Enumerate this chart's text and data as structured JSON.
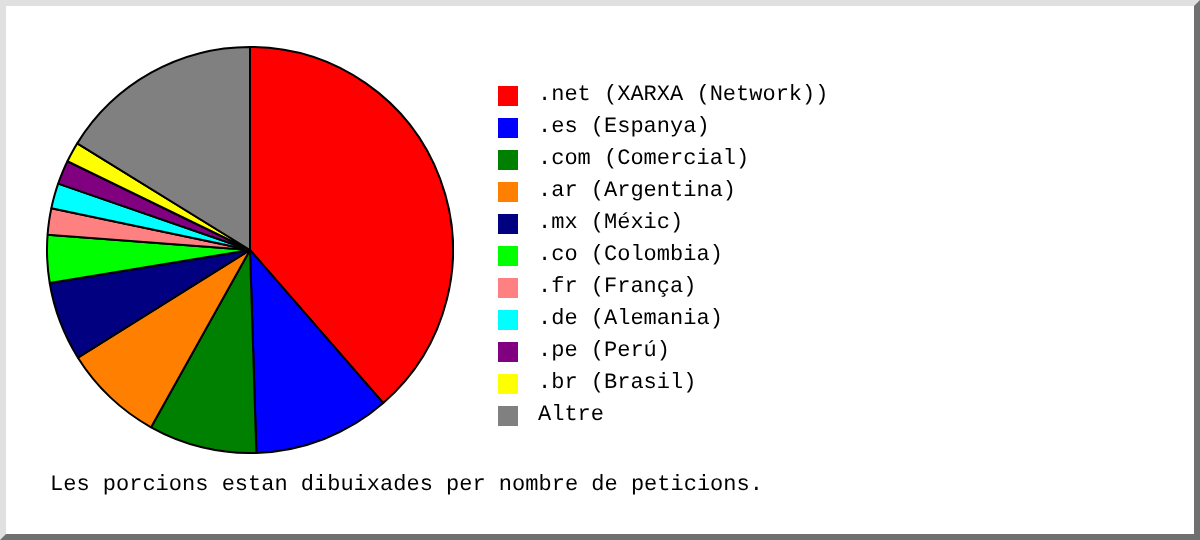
{
  "chart_data": {
    "type": "pie",
    "categories": [
      ".net (XARXA (Network))",
      ".es (Espanya)",
      ".com (Comercial)",
      ".ar (Argentina)",
      ".mx (Méxic)",
      ".co (Colombia)",
      ".fr (França)",
      ".de (Alemania)",
      ".pe (Perú)",
      ".br (Brasil)",
      "Altre"
    ],
    "values": [
      38.6,
      10.9,
      8.6,
      8.0,
      6.3,
      3.8,
      2.1,
      2.0,
      1.9,
      1.6,
      16.2
    ],
    "colors": [
      "#ff0000",
      "#0000ff",
      "#008000",
      "#ff8000",
      "#000080",
      "#00ff00",
      "#ff8080",
      "#00ffff",
      "#800080",
      "#ffff00",
      "#808080"
    ],
    "legend": "right",
    "annotations": [
      "Les porcions estan dibuixades per nombre de peticions."
    ]
  }
}
